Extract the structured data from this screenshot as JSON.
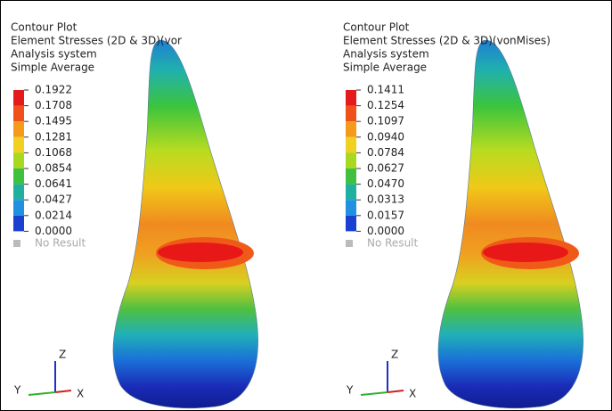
{
  "panels": [
    {
      "header": [
        "Contour Plot",
        "Element Stresses (2D & 3D)(vor",
        "Analysis system",
        "Simple Average"
      ],
      "legend": [
        "0.1922",
        "0.1708",
        "0.1495",
        "0.1281",
        "0.1068",
        "0.0854",
        "0.0641",
        "0.0427",
        "0.0214",
        "0.0000"
      ],
      "no_result": "No Result",
      "axes": {
        "z": "Z",
        "y": "Y",
        "x": "X"
      }
    },
    {
      "header": [
        "Contour Plot",
        "Element Stresses (2D & 3D)(vonMises)",
        "Analysis system",
        "Simple Average"
      ],
      "legend": [
        "0.1411",
        "0.1254",
        "0.1097",
        "0.0940",
        "0.0784",
        "0.0627",
        "0.0470",
        "0.0313",
        "0.0157",
        "0.0000"
      ],
      "no_result": "No Result",
      "axes": {
        "z": "Z",
        "y": "Y",
        "x": "X"
      }
    }
  ]
}
